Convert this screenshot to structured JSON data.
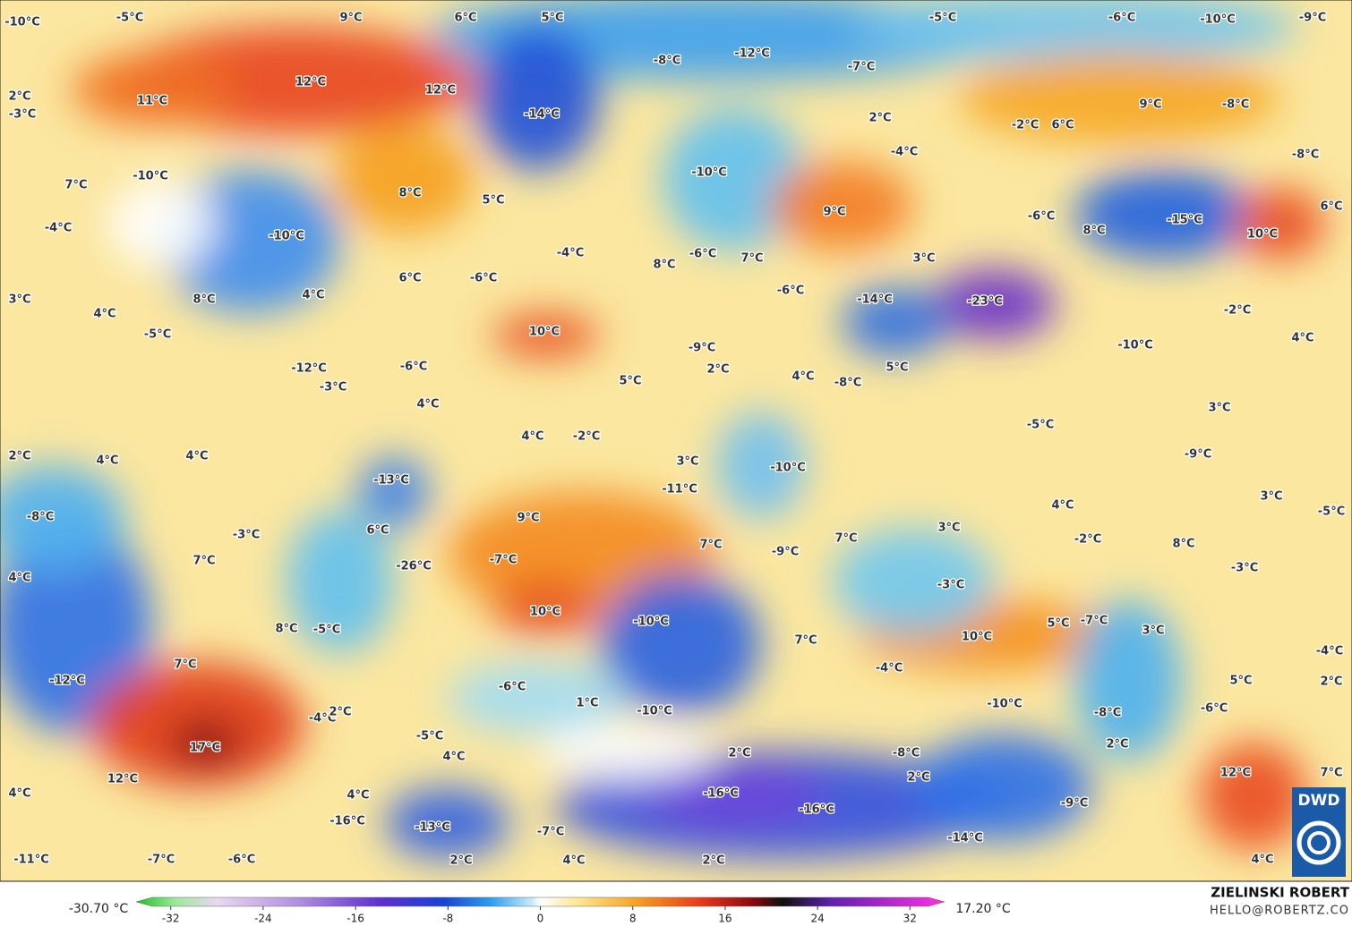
{
  "map": {
    "labels": [
      "-10°C",
      "-5°C",
      "9°C",
      "6°C",
      "5°C",
      "-5°C",
      "-6°C",
      "-10°C",
      "-9°C",
      "-12°C",
      "-8°C",
      "-7°C",
      "2°C",
      "-3°C",
      "11°C",
      "12°C",
      "12°C",
      "-14°C",
      "2°C",
      "-2°C",
      "6°C",
      "9°C",
      "-8°C",
      "7°C",
      "-10°C",
      "8°C",
      "5°C",
      "-10°C",
      "-4°C",
      "-8°C",
      "-4°C",
      "-10°C",
      "-4°C",
      "9°C",
      "-6°C",
      "8°C",
      "-15°C",
      "10°C",
      "6°C",
      "3°C",
      "8°C",
      "4°C",
      "6°C",
      "-6°C",
      "8°C",
      "-6°C",
      "7°C",
      "3°C",
      "-6°C",
      "-14°C",
      "-23°C",
      "-2°C",
      "4°C",
      "-5°C",
      "10°C",
      "-9°C",
      "-10°C",
      "4°C",
      "-12°C",
      "-6°C",
      "2°C",
      "4°C",
      "5°C",
      "-3°C",
      "5°C",
      "-8°C",
      "4°C",
      "3°C",
      "-5°C",
      "2°C",
      "4°C",
      "4°C",
      "4°C",
      "-2°C",
      "3°C",
      "-10°C",
      "-9°C",
      "-13°C",
      "-11°C",
      "3°C",
      "4°C",
      "-8°C",
      "-5°C",
      "-3°C",
      "6°C",
      "9°C",
      "7°C",
      "7°C",
      "3°C",
      "-2°C",
      "8°C",
      "7°C",
      "-26°C",
      "-7°C",
      "-9°C",
      "-3°C",
      "4°C",
      "-3°C",
      "10°C",
      "-10°C",
      "8°C",
      "-5°C",
      "5°C",
      "-7°C",
      "3°C",
      "10°C",
      "7°C",
      "7°C",
      "-4°C",
      "-4°C",
      "-12°C",
      "5°C",
      "2°C",
      "-6°C",
      "1°C",
      "-10°C",
      "-10°C",
      "-8°C",
      "-6°C",
      "-4°C",
      "2°C",
      "-5°C",
      "17°C",
      "2°C",
      "-8°C",
      "2°C",
      "4°C",
      "12°C",
      "2°C",
      "12°C",
      "7°C",
      "4°C",
      "4°C",
      "-16°C",
      "-9°C",
      "-16°C",
      "-16°C",
      "-13°C",
      "-7°C",
      "-14°C",
      "-11°C",
      "-7°C",
      "-6°C",
      "2°C",
      "4°C",
      "2°C",
      "4°C"
    ]
  },
  "colorbar": {
    "min_label": "-30.70 °C",
    "max_label": "17.20 °C",
    "range": [
      -35,
      35
    ],
    "ticks": [
      -32,
      -24,
      -16,
      -8,
      0,
      8,
      16,
      24,
      32
    ]
  },
  "credit": {
    "name": "ZIELINSKI ROBERT",
    "contact": "HELLO@ROBERTZ.CO",
    "logo": "DWD"
  }
}
